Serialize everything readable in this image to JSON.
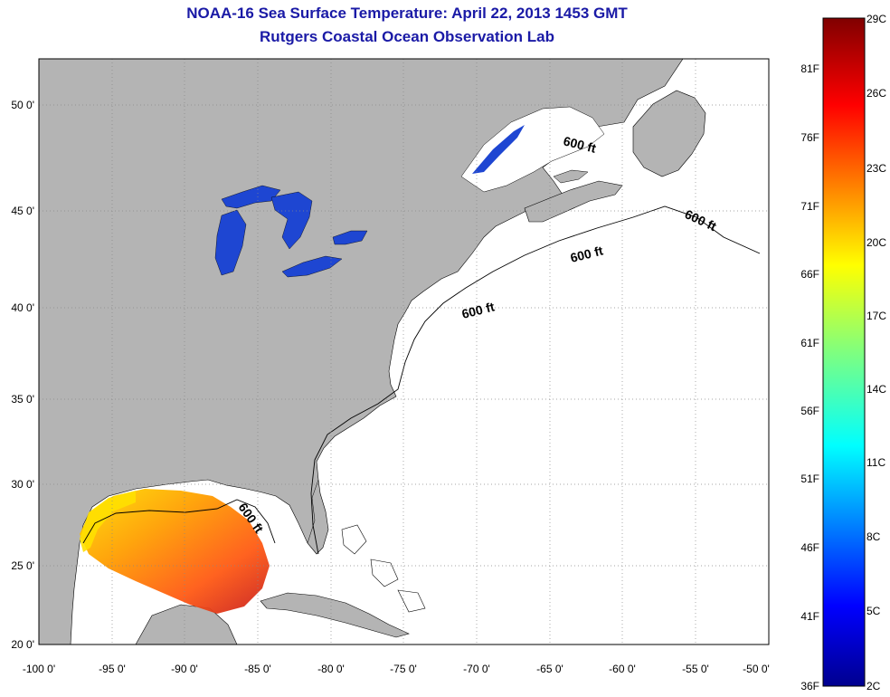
{
  "header": {
    "title": "NOAA-16 Sea Surface Temperature:  April 22, 2013 1453 GMT",
    "subtitle": "Rutgers Coastal Ocean Observation Lab"
  },
  "map": {
    "lat_labels": [
      "50 0'",
      "45 0'",
      "40 0'",
      "35 0'",
      "30 0'",
      "25 0'",
      "20 0'"
    ],
    "lon_labels": [
      "-100 0'",
      "-95 0'",
      "-90 0'",
      "-85 0'",
      "-80 0'",
      "-75 0'",
      "-70 0'",
      "-65 0'",
      "-60 0'",
      "-55 0'",
      "-50 0'"
    ],
    "contour_label": "600 ft",
    "land_color": "#b4b4b4",
    "ocean_color": "#ffffff"
  },
  "colorbar": {
    "fahrenheit_labels": [
      "81F",
      "76F",
      "71F",
      "66F",
      "61F",
      "56F",
      "51F",
      "46F",
      "41F",
      "36F"
    ],
    "celsius_labels": [
      "29C",
      "26C",
      "23C",
      "20C",
      "17C",
      "14C",
      "11C",
      "8C",
      "5C",
      "2C"
    ],
    "range_celsius": [
      2,
      29
    ]
  }
}
